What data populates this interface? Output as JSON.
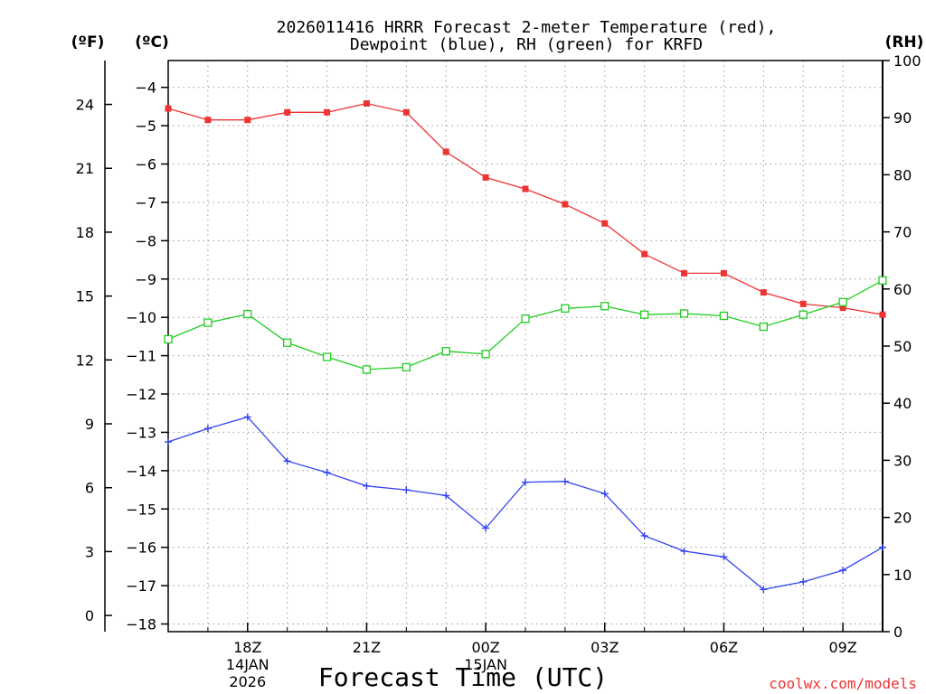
{
  "chart_data": {
    "type": "line",
    "title_line1": "2026011416 HRRR Forecast 2-meter Temperature (red),",
    "title_line2": "Dewpoint (blue), RH (green) for KRFD",
    "unit_f": "(ºF)",
    "unit_c": "(ºC)",
    "unit_rh": "(RH)",
    "xlabel": "Forecast Time (UTC)",
    "credit": "coolwx.com/models",
    "x_hours": [
      16,
      17,
      18,
      19,
      20,
      21,
      22,
      23,
      24,
      25,
      26,
      27,
      28,
      29,
      30,
      31,
      32,
      33,
      34
    ],
    "x_ticks": [
      {
        "hour": 18,
        "lines": [
          "18Z",
          "14JAN",
          "2026"
        ]
      },
      {
        "hour": 21,
        "lines": [
          "21Z"
        ]
      },
      {
        "hour": 24,
        "lines": [
          "00Z",
          "15JAN"
        ]
      },
      {
        "hour": 27,
        "lines": [
          "03Z"
        ]
      },
      {
        "hour": 30,
        "lines": [
          "06Z"
        ]
      },
      {
        "hour": 33,
        "lines": [
          "09Z"
        ]
      }
    ],
    "xlim": [
      16,
      34
    ],
    "ylim_c": [
      -18.2,
      -3.3
    ],
    "ylim_rh": [
      0,
      100
    ],
    "celsius_ticks": [
      -4,
      -5,
      -6,
      -7,
      -8,
      -9,
      -10,
      -11,
      -12,
      -13,
      -14,
      -15,
      -16,
      -17,
      -18
    ],
    "fahrenheit_ticks": [
      24,
      21,
      18,
      15,
      12,
      9,
      6,
      3,
      0
    ],
    "rh_ticks": [
      100,
      90,
      80,
      70,
      60,
      50,
      40,
      30,
      20,
      10,
      0
    ],
    "series": [
      {
        "name": "Temperature",
        "unit": "C",
        "color": "#ee3333",
        "marker": "filled-square",
        "values": [
          -4.55,
          -4.85,
          -4.85,
          -4.65,
          -4.65,
          -4.42,
          -4.65,
          -5.68,
          -6.35,
          -6.65,
          -7.05,
          -7.55,
          -8.35,
          -8.85,
          -8.85,
          -9.35,
          -9.65,
          -9.75,
          -9.93
        ]
      },
      {
        "name": "Dewpoint",
        "unit": "C",
        "color": "#3344ee",
        "marker": "plus",
        "values": [
          -13.25,
          -12.9,
          -12.6,
          -13.75,
          -14.05,
          -14.4,
          -14.5,
          -14.65,
          -15.5,
          -14.3,
          -14.28,
          -14.6,
          -15.7,
          -16.1,
          -16.25,
          -17.1,
          -16.9,
          -16.6,
          -16.0
        ]
      },
      {
        "name": "RH",
        "unit": "%",
        "color": "#22cc22",
        "marker": "open-square",
        "values": [
          51.2,
          54.1,
          55.6,
          50.6,
          48.1,
          45.9,
          46.3,
          49.1,
          48.6,
          54.8,
          56.6,
          57.0,
          55.5,
          55.7,
          55.3,
          53.4,
          55.5,
          57.7,
          61.5
        ]
      }
    ]
  }
}
